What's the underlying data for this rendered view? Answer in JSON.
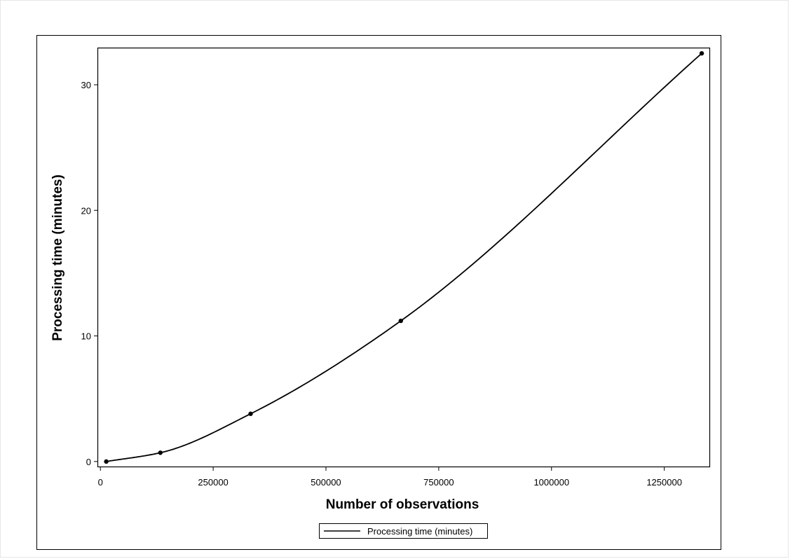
{
  "chart_data": {
    "type": "line",
    "title": "",
    "xlabel": "Number of observations",
    "ylabel": "Processing time (minutes)",
    "xlim": [
      -5000,
      1350000
    ],
    "ylim": [
      -0.4,
      32.9
    ],
    "x_ticks": [
      0,
      250000,
      500000,
      750000,
      1000000,
      1250000
    ],
    "x_tick_labels": [
      "0",
      "250000",
      "500000",
      "750000",
      "1000000",
      "1250000"
    ],
    "y_ticks": [
      0,
      10,
      20,
      30
    ],
    "y_tick_labels": [
      "0",
      "10",
      "20",
      "30"
    ],
    "grid": false,
    "legend_position": "bottom-center",
    "series": [
      {
        "name": "Processing time (minutes)",
        "color": "#000000",
        "markers": true,
        "points": [
          {
            "x": 13000,
            "y": 0.0
          },
          {
            "x": 133000,
            "y": 0.7
          },
          {
            "x": 333000,
            "y": 3.8
          },
          {
            "x": 666000,
            "y": 11.2
          },
          {
            "x": 1333000,
            "y": 32.5
          }
        ]
      }
    ]
  }
}
